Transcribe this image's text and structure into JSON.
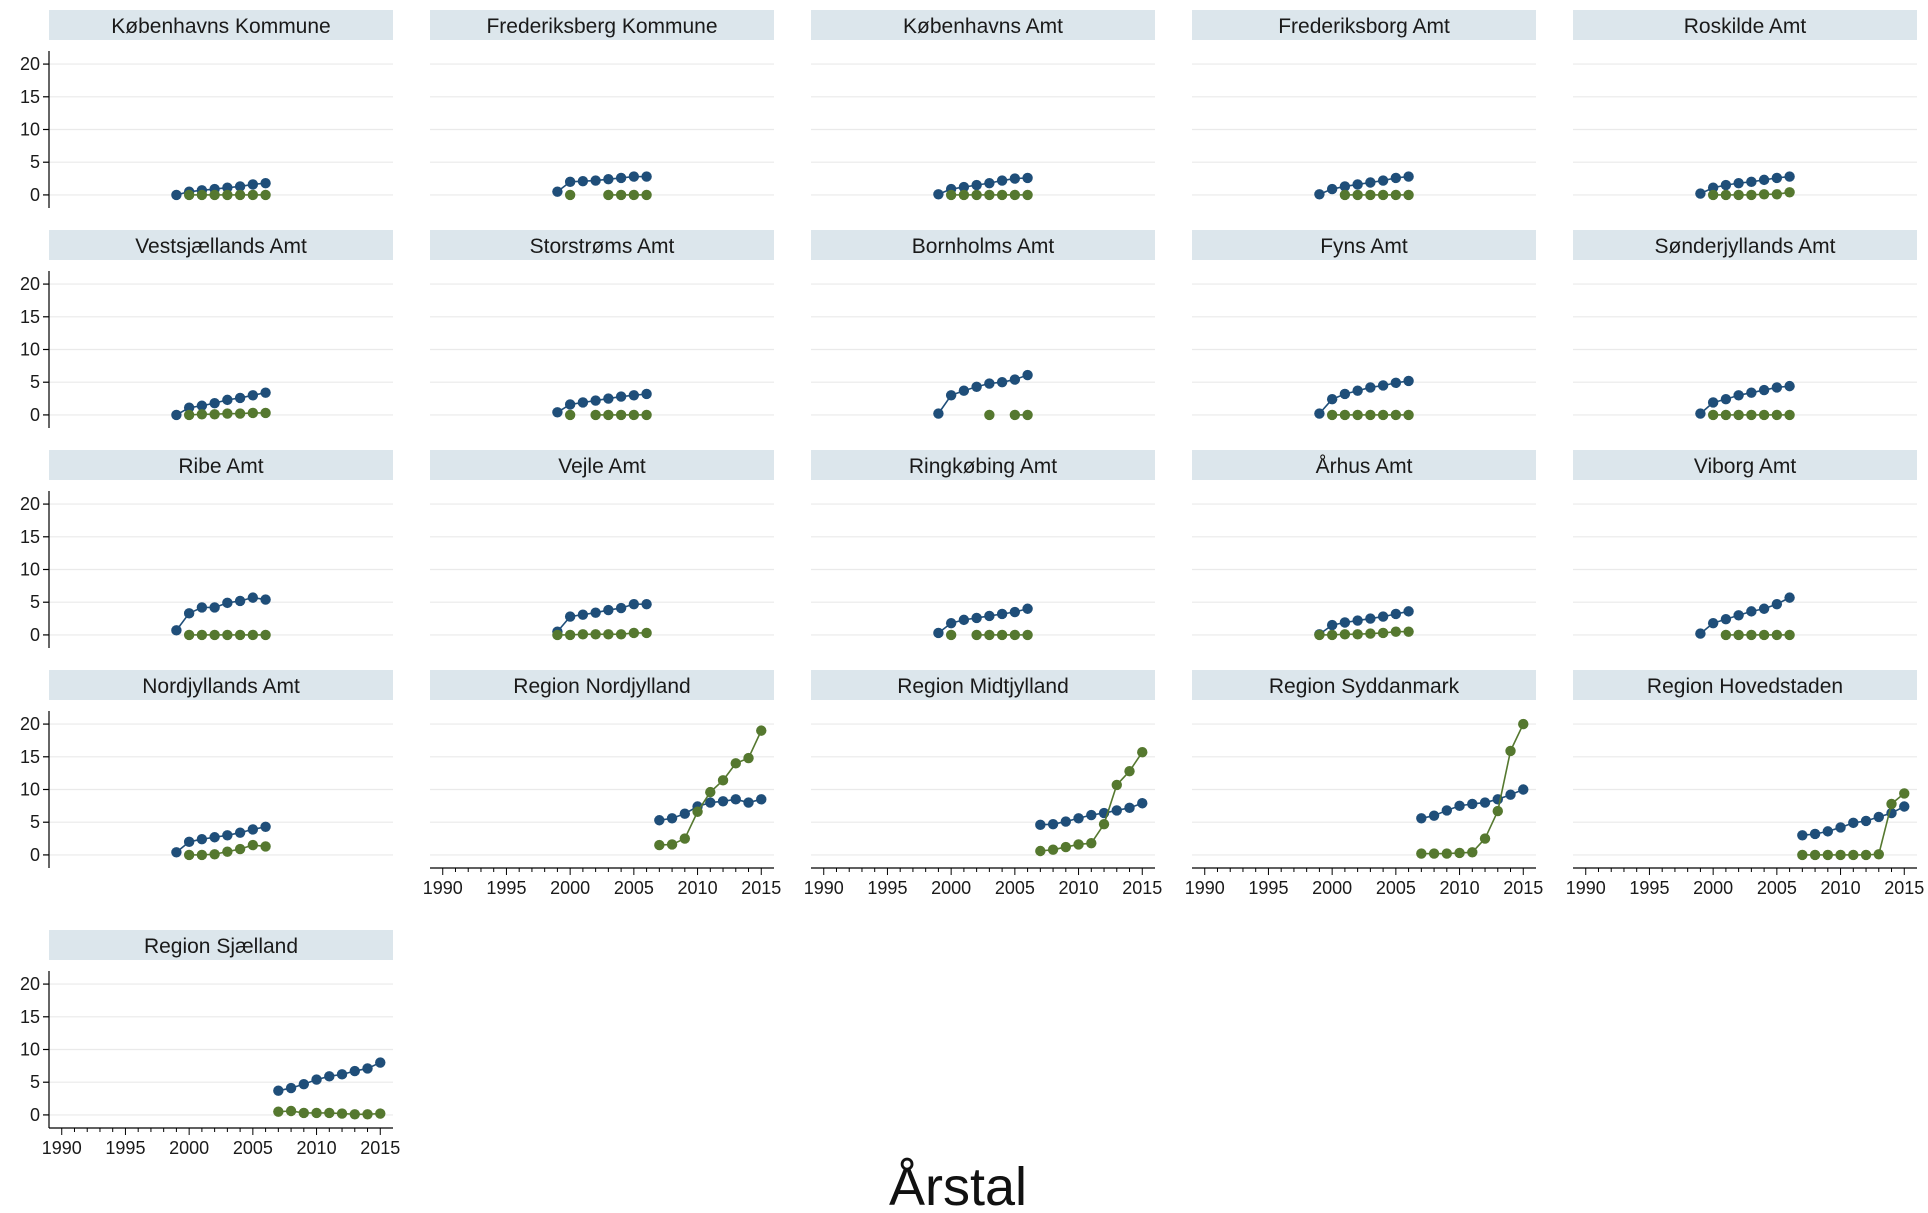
{
  "chart_data": {
    "type": "line",
    "xlabel": "Årstal",
    "ylabel": "",
    "xlim": [
      1989,
      2016
    ],
    "ylim": [
      -2,
      22
    ],
    "xticks": [
      1990,
      1995,
      2000,
      2005,
      2010,
      2015
    ],
    "yticks": [
      0,
      5,
      10,
      15,
      20
    ],
    "grid": true,
    "colors": {
      "series_a": "#1f4e79",
      "series_b": "#55782f",
      "strip": "#dce6ec"
    },
    "panels": [
      {
        "title": "Københavns Kommune",
        "series": [
          {
            "x": [
              1999,
              2000,
              2001,
              2002,
              2003,
              2004,
              2005,
              2006
            ],
            "y": [
              0.0,
              0.5,
              0.7,
              0.9,
              1.1,
              1.3,
              1.6,
              1.8
            ]
          },
          {
            "x": [
              2000,
              2001,
              2002,
              2003,
              2004,
              2005,
              2006
            ],
            "y": [
              0.0,
              0.0,
              0.0,
              0.0,
              0.0,
              0.0,
              0.0
            ]
          }
        ]
      },
      {
        "title": "Frederiksberg Kommune",
        "series": [
          {
            "x": [
              1999,
              2000,
              2001,
              2002,
              2003,
              2004,
              2005,
              2006
            ],
            "y": [
              0.5,
              2.0,
              2.1,
              2.2,
              2.4,
              2.6,
              2.8,
              2.8
            ]
          },
          {
            "x": [
              2000,
              2003,
              2004,
              2005,
              2006
            ],
            "y": [
              0.0,
              0.0,
              0.0,
              0.0,
              0.0
            ]
          }
        ]
      },
      {
        "title": "Københavns Amt",
        "series": [
          {
            "x": [
              1999,
              2000,
              2001,
              2002,
              2003,
              2004,
              2005,
              2006
            ],
            "y": [
              0.1,
              0.9,
              1.2,
              1.5,
              1.8,
              2.2,
              2.5,
              2.6
            ]
          },
          {
            "x": [
              2000,
              2001,
              2002,
              2003,
              2004,
              2005,
              2006
            ],
            "y": [
              0.0,
              0.0,
              0.0,
              0.0,
              0.0,
              0.0,
              0.0
            ]
          }
        ]
      },
      {
        "title": "Frederiksborg Amt",
        "series": [
          {
            "x": [
              1999,
              2000,
              2001,
              2002,
              2003,
              2004,
              2005,
              2006
            ],
            "y": [
              0.1,
              0.9,
              1.3,
              1.6,
              1.9,
              2.2,
              2.6,
              2.8
            ]
          },
          {
            "x": [
              2001,
              2002,
              2003,
              2004,
              2005,
              2006
            ],
            "y": [
              0.0,
              0.0,
              0.0,
              0.0,
              0.0,
              0.0
            ]
          }
        ]
      },
      {
        "title": "Roskilde Amt",
        "series": [
          {
            "x": [
              1999,
              2000,
              2001,
              2002,
              2003,
              2004,
              2005,
              2006
            ],
            "y": [
              0.2,
              1.1,
              1.5,
              1.8,
              2.0,
              2.3,
              2.6,
              2.8
            ]
          },
          {
            "x": [
              2000,
              2001,
              2002,
              2003,
              2004,
              2005,
              2006
            ],
            "y": [
              0.0,
              0.0,
              0.0,
              0.0,
              0.1,
              0.1,
              0.4
            ]
          }
        ]
      },
      {
        "title": "Vestsjællands Amt",
        "series": [
          {
            "x": [
              1999,
              2000,
              2001,
              2002,
              2003,
              2004,
              2005,
              2006
            ],
            "y": [
              0.0,
              1.1,
              1.4,
              1.8,
              2.3,
              2.6,
              3.0,
              3.4
            ]
          },
          {
            "x": [
              2000,
              2001,
              2002,
              2003,
              2004,
              2005,
              2006
            ],
            "y": [
              0.0,
              0.1,
              0.1,
              0.2,
              0.2,
              0.3,
              0.3
            ]
          }
        ]
      },
      {
        "title": "Storstrøms Amt",
        "series": [
          {
            "x": [
              1999,
              2000,
              2001,
              2002,
              2003,
              2004,
              2005,
              2006
            ],
            "y": [
              0.4,
              1.6,
              1.9,
              2.2,
              2.5,
              2.8,
              3.0,
              3.2
            ]
          },
          {
            "x": [
              2000,
              2002,
              2003,
              2004,
              2005,
              2006
            ],
            "y": [
              0.0,
              0.0,
              0.0,
              0.0,
              0.0,
              0.0
            ]
          }
        ]
      },
      {
        "title": "Bornholms Amt",
        "series": [
          {
            "x": [
              1999,
              2000,
              2001,
              2002,
              2003,
              2004,
              2005,
              2006
            ],
            "y": [
              0.2,
              3.0,
              3.7,
              4.3,
              4.8,
              5.0,
              5.4,
              6.1
            ]
          },
          {
            "x": [
              2003,
              2005,
              2006
            ],
            "y": [
              0.0,
              0.0,
              0.0
            ]
          }
        ]
      },
      {
        "title": "Fyns Amt",
        "series": [
          {
            "x": [
              1999,
              2000,
              2001,
              2002,
              2003,
              2004,
              2005,
              2006
            ],
            "y": [
              0.2,
              2.4,
              3.2,
              3.7,
              4.2,
              4.5,
              4.9,
              5.2
            ]
          },
          {
            "x": [
              2000,
              2001,
              2002,
              2003,
              2004,
              2005,
              2006
            ],
            "y": [
              0.0,
              0.0,
              0.0,
              0.0,
              0.0,
              0.0,
              0.0
            ]
          }
        ]
      },
      {
        "title": "Sønderjyllands Amt",
        "series": [
          {
            "x": [
              1999,
              2000,
              2001,
              2002,
              2003,
              2004,
              2005,
              2006
            ],
            "y": [
              0.2,
              1.9,
              2.4,
              3.0,
              3.4,
              3.8,
              4.2,
              4.4
            ]
          },
          {
            "x": [
              2000,
              2001,
              2002,
              2003,
              2004,
              2005,
              2006
            ],
            "y": [
              0.0,
              0.0,
              0.0,
              0.0,
              0.0,
              0.0,
              0.0
            ]
          }
        ]
      },
      {
        "title": "Ribe Amt",
        "series": [
          {
            "x": [
              1999,
              2000,
              2001,
              2002,
              2003,
              2004,
              2005,
              2006
            ],
            "y": [
              0.7,
              3.3,
              4.2,
              4.2,
              4.9,
              5.2,
              5.7,
              5.4
            ]
          },
          {
            "x": [
              2000,
              2001,
              2002,
              2003,
              2004,
              2005,
              2006
            ],
            "y": [
              0.0,
              0.0,
              0.0,
              0.0,
              0.0,
              0.0,
              0.0
            ]
          }
        ]
      },
      {
        "title": "Vejle Amt",
        "series": [
          {
            "x": [
              1999,
              2000,
              2001,
              2002,
              2003,
              2004,
              2005,
              2006
            ],
            "y": [
              0.5,
              2.8,
              3.1,
              3.4,
              3.8,
              4.1,
              4.7,
              4.7
            ]
          },
          {
            "x": [
              1999,
              2000,
              2001,
              2002,
              2003,
              2004,
              2005,
              2006
            ],
            "y": [
              0.0,
              0.0,
              0.1,
              0.1,
              0.1,
              0.1,
              0.3,
              0.3
            ]
          }
        ]
      },
      {
        "title": "Ringkøbing Amt",
        "series": [
          {
            "x": [
              1999,
              2000,
              2001,
              2002,
              2003,
              2004,
              2005,
              2006
            ],
            "y": [
              0.3,
              1.8,
              2.3,
              2.6,
              2.9,
              3.2,
              3.5,
              4.0
            ]
          },
          {
            "x": [
              2000,
              2002,
              2003,
              2004,
              2005,
              2006
            ],
            "y": [
              0.0,
              0.0,
              0.0,
              0.0,
              0.0,
              0.0
            ]
          }
        ]
      },
      {
        "title": "Århus Amt",
        "series": [
          {
            "x": [
              1999,
              2000,
              2001,
              2002,
              2003,
              2004,
              2005,
              2006
            ],
            "y": [
              0.1,
              1.5,
              1.9,
              2.2,
              2.5,
              2.8,
              3.2,
              3.6
            ]
          },
          {
            "x": [
              1999,
              2000,
              2001,
              2002,
              2003,
              2004,
              2005,
              2006
            ],
            "y": [
              0.0,
              0.0,
              0.1,
              0.1,
              0.2,
              0.3,
              0.5,
              0.5
            ]
          }
        ]
      },
      {
        "title": "Viborg Amt",
        "series": [
          {
            "x": [
              1999,
              2000,
              2001,
              2002,
              2003,
              2004,
              2005,
              2006
            ],
            "y": [
              0.2,
              1.8,
              2.4,
              3.0,
              3.6,
              4.0,
              4.7,
              5.7
            ]
          },
          {
            "x": [
              2001,
              2002,
              2003,
              2004,
              2005,
              2006
            ],
            "y": [
              0.0,
              0.0,
              0.0,
              0.0,
              0.0,
              0.0
            ]
          }
        ]
      },
      {
        "title": "Nordjyllands Amt",
        "series": [
          {
            "x": [
              1999,
              2000,
              2001,
              2002,
              2003,
              2004,
              2005,
              2006
            ],
            "y": [
              0.4,
              2.0,
              2.4,
              2.7,
              3.0,
              3.4,
              3.9,
              4.3
            ]
          },
          {
            "x": [
              2000,
              2001,
              2002,
              2003,
              2004,
              2005,
              2006
            ],
            "y": [
              0.0,
              0.0,
              0.1,
              0.5,
              0.9,
              1.5,
              1.3
            ]
          }
        ]
      },
      {
        "title": "Region Nordjylland",
        "series": [
          {
            "x": [
              2007,
              2008,
              2009,
              2010,
              2011,
              2012,
              2013,
              2014,
              2015
            ],
            "y": [
              5.3,
              5.6,
              6.3,
              7.4,
              8.0,
              8.2,
              8.5,
              8.0,
              8.5
            ]
          },
          {
            "x": [
              2007,
              2008,
              2009,
              2010,
              2011,
              2012,
              2013,
              2014,
              2015
            ],
            "y": [
              1.5,
              1.6,
              2.5,
              6.6,
              9.6,
              11.4,
              14.0,
              14.8,
              19.0
            ]
          }
        ]
      },
      {
        "title": "Region Midtjylland",
        "series": [
          {
            "x": [
              2007,
              2008,
              2009,
              2010,
              2011,
              2012,
              2013,
              2014,
              2015
            ],
            "y": [
              4.6,
              4.7,
              5.1,
              5.6,
              6.1,
              6.4,
              6.8,
              7.2,
              7.9
            ]
          },
          {
            "x": [
              2007,
              2008,
              2009,
              2010,
              2011,
              2012,
              2013,
              2014,
              2015
            ],
            "y": [
              0.6,
              0.8,
              1.2,
              1.6,
              1.8,
              4.7,
              10.7,
              12.8,
              15.7
            ]
          }
        ]
      },
      {
        "title": "Region Syddanmark",
        "series": [
          {
            "x": [
              2007,
              2008,
              2009,
              2010,
              2011,
              2012,
              2013,
              2014,
              2015
            ],
            "y": [
              5.6,
              6.0,
              6.8,
              7.5,
              7.8,
              8.0,
              8.5,
              9.2,
              10.0
            ]
          },
          {
            "x": [
              2007,
              2008,
              2009,
              2010,
              2011,
              2012,
              2013,
              2014,
              2015
            ],
            "y": [
              0.2,
              0.2,
              0.2,
              0.3,
              0.4,
              2.5,
              6.7,
              15.9,
              20.0
            ]
          }
        ]
      },
      {
        "title": "Region Hovedstaden",
        "series": [
          {
            "x": [
              2007,
              2008,
              2009,
              2010,
              2011,
              2012,
              2013,
              2014,
              2015
            ],
            "y": [
              3.0,
              3.2,
              3.6,
              4.2,
              4.9,
              5.2,
              5.8,
              6.4,
              7.4
            ]
          },
          {
            "x": [
              2007,
              2008,
              2009,
              2010,
              2011,
              2012,
              2013,
              2014,
              2015
            ],
            "y": [
              0.0,
              0.0,
              0.0,
              0.0,
              0.0,
              0.0,
              0.1,
              7.8,
              9.4
            ]
          }
        ]
      },
      {
        "title": "Region Sjælland",
        "series": [
          {
            "x": [
              2007,
              2008,
              2009,
              2010,
              2011,
              2012,
              2013,
              2014,
              2015
            ],
            "y": [
              3.7,
              4.1,
              4.7,
              5.4,
              5.9,
              6.2,
              6.7,
              7.1,
              8.0
            ]
          },
          {
            "x": [
              2007,
              2008,
              2009,
              2010,
              2011,
              2012,
              2013,
              2014,
              2015
            ],
            "y": [
              0.5,
              0.6,
              0.3,
              0.3,
              0.3,
              0.2,
              0.1,
              0.1,
              0.2
            ]
          }
        ]
      }
    ]
  }
}
